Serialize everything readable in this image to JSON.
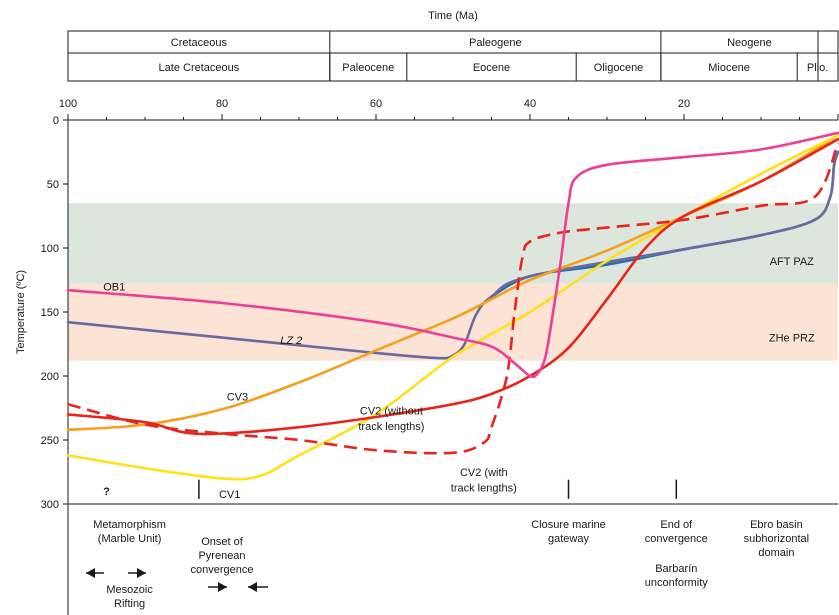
{
  "chart_data": {
    "type": "line",
    "title": "Time (Ma)",
    "xlabel": "Time (Ma)",
    "ylabel": "Temperature (ºC)",
    "xlim": [
      100,
      0
    ],
    "ylim": [
      0,
      300
    ],
    "x_ticks": [
      100,
      80,
      60,
      40,
      20
    ],
    "y_ticks": [
      0,
      50,
      100,
      150,
      200,
      250,
      300
    ],
    "periods": [
      {
        "label": "Cretaceous",
        "start": 100,
        "end": 66
      },
      {
        "label": "Paleogene",
        "start": 66,
        "end": 23
      },
      {
        "label": "Neogene",
        "start": 23,
        "end": 0
      }
    ],
    "epochs": [
      {
        "label": "Late Cretaceous",
        "start": 100,
        "end": 66
      },
      {
        "label": "Paleocene",
        "start": 66,
        "end": 56
      },
      {
        "label": "Eocene",
        "start": 56,
        "end": 34
      },
      {
        "label": "Oligocene",
        "start": 34,
        "end": 23
      },
      {
        "label": "Miocene",
        "start": 23,
        "end": 5.3
      },
      {
        "label": "Plio.",
        "start": 5.3,
        "end": 0
      }
    ],
    "bands": [
      {
        "label": "AFT PAZ",
        "from": 65,
        "to": 128,
        "color": "#dde6dc"
      },
      {
        "label": "ZHe PRZ",
        "from": 128,
        "to": 188,
        "color": "#fbe4d6"
      }
    ],
    "series": [
      {
        "name": "OB1",
        "color": "#ee3e96",
        "dashed": false,
        "points": [
          [
            100,
            133
          ],
          [
            80,
            143
          ],
          [
            60,
            158
          ],
          [
            50,
            170
          ],
          [
            45,
            177
          ],
          [
            42,
            190
          ],
          [
            40,
            200
          ],
          [
            39,
            198
          ],
          [
            38,
            185
          ],
          [
            37,
            150
          ],
          [
            36,
            110
          ],
          [
            35,
            65
          ],
          [
            34,
            45
          ],
          [
            30,
            35
          ],
          [
            20,
            29
          ],
          [
            10,
            23
          ],
          [
            0,
            10
          ]
        ]
      },
      {
        "name": "LZ 2",
        "color": "#6a6a9e",
        "dashed": false,
        "points": [
          [
            100,
            158
          ],
          [
            80,
            170
          ],
          [
            60,
            182
          ],
          [
            52,
            186
          ],
          [
            50,
            184
          ],
          [
            48.5,
            175
          ],
          [
            47,
            152
          ],
          [
            45,
            138
          ],
          [
            40,
            122
          ],
          [
            20,
            101
          ],
          [
            10,
            90
          ],
          [
            3,
            78
          ],
          [
            1,
            60
          ],
          [
            0.5,
            35
          ],
          [
            0,
            25
          ]
        ]
      },
      {
        "name": "",
        "color": "#2071b0",
        "dashed": false,
        "points": [
          [
            45,
            138
          ],
          [
            40,
            122
          ],
          [
            30,
            113
          ],
          [
            20,
            101
          ],
          [
            10,
            90
          ],
          [
            3,
            78
          ],
          [
            1,
            60
          ],
          [
            0.5,
            35
          ],
          [
            0,
            25
          ]
        ]
      },
      {
        "name": "CV3",
        "color": "#f4a01c",
        "dashed": false,
        "points": [
          [
            100,
            242
          ],
          [
            90,
            238
          ],
          [
            80,
            226
          ],
          [
            70,
            205
          ],
          [
            60,
            180
          ],
          [
            50,
            155
          ],
          [
            45,
            140
          ],
          [
            40,
            125
          ],
          [
            30,
            102
          ],
          [
            20,
            75
          ],
          [
            10,
            48
          ],
          [
            0,
            12
          ]
        ]
      },
      {
        "name": "CV2 (without track lengths)",
        "color": "#e8251c",
        "dashed": false,
        "points": [
          [
            100,
            230
          ],
          [
            90,
            236
          ],
          [
            85,
            244
          ],
          [
            80,
            245
          ],
          [
            70,
            240
          ],
          [
            60,
            232
          ],
          [
            50,
            222
          ],
          [
            45,
            214
          ],
          [
            40,
            200
          ],
          [
            35,
            178
          ],
          [
            30,
            140
          ],
          [
            25,
            100
          ],
          [
            20,
            75
          ],
          [
            10,
            48
          ],
          [
            0,
            15
          ]
        ]
      },
      {
        "name": "CV2 (with track lengths)",
        "color": "#e8251c",
        "dashed": true,
        "points": [
          [
            100,
            222
          ],
          [
            90,
            238
          ],
          [
            80,
            245
          ],
          [
            70,
            250
          ],
          [
            60,
            258
          ],
          [
            50,
            260
          ],
          [
            46,
            252
          ],
          [
            45,
            240
          ],
          [
            43,
            200
          ],
          [
            42,
            150
          ],
          [
            41,
            108
          ],
          [
            40,
            95
          ],
          [
            36,
            88
          ],
          [
            30,
            84
          ],
          [
            20,
            78
          ],
          [
            10,
            67
          ],
          [
            3,
            60
          ],
          [
            0,
            18
          ]
        ]
      },
      {
        "name": "CV1",
        "color": "#ffe01a",
        "dashed": false,
        "points": [
          [
            100,
            262
          ],
          [
            90,
            272
          ],
          [
            80,
            280
          ],
          [
            75,
            278
          ],
          [
            70,
            262
          ],
          [
            60,
            230
          ],
          [
            50,
            185
          ],
          [
            40,
            150
          ],
          [
            30,
            110
          ],
          [
            20,
            75
          ],
          [
            10,
            42
          ],
          [
            0,
            12
          ]
        ]
      }
    ],
    "annotations": [
      {
        "text": "OB1",
        "x": 94,
        "y": 130,
        "color": "#1a1a1a"
      },
      {
        "text": "LZ 2",
        "x": 71,
        "y": 172,
        "italic": true
      },
      {
        "text": "CV3",
        "x": 78,
        "y": 216
      },
      {
        "text": "CV2 (without",
        "x": 58,
        "y": 227
      },
      {
        "text": "track lengths)",
        "x": 58,
        "y": 239
      },
      {
        "text": "CV2 (with",
        "x": 46,
        "y": 275
      },
      {
        "text": "track lengths)",
        "x": 46,
        "y": 287
      },
      {
        "text": "CV1",
        "x": 79,
        "y": 292
      },
      {
        "text": "?",
        "x": 95,
        "y": 290,
        "bold": true
      },
      {
        "text": "AFT PAZ",
        "x": 6,
        "y": 110
      },
      {
        "text": "ZHe PRZ",
        "x": 6,
        "y": 170
      }
    ],
    "event_ticks": [
      83,
      35,
      21
    ],
    "events": [
      {
        "lines": [
          "Metamorphism",
          "(Marble Unit)"
        ],
        "x": 92
      },
      {
        "lines": [
          "Mesozoic",
          "Rifting"
        ],
        "x": 92,
        "row": "lower",
        "arrows": "outward"
      },
      {
        "lines": [
          "Onset of",
          "Pyrenean",
          "convergence"
        ],
        "x": 80,
        "arrows": "inward"
      },
      {
        "lines": [
          "Closure marine",
          "gateway"
        ],
        "x": 35
      },
      {
        "lines": [
          "End of",
          "convergence"
        ],
        "x": 21
      },
      {
        "lines": [
          "Barbarín",
          "unconformity"
        ],
        "x": 21,
        "row": "lower"
      },
      {
        "lines": [
          "Ebro basin",
          "subhorizontal",
          "domain"
        ],
        "x": 8
      }
    ]
  }
}
